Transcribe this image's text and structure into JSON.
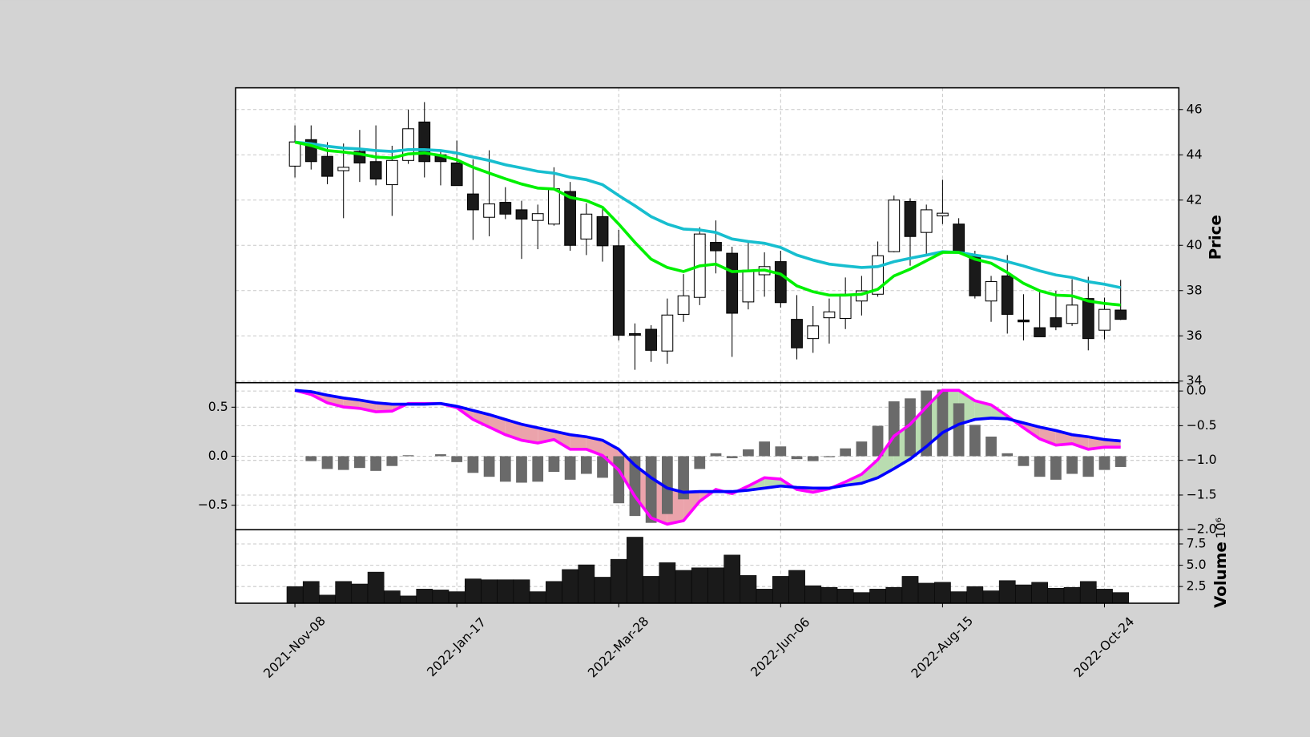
{
  "chart_data": [
    {
      "type": "candlestick",
      "categories": [
        "2021-Nov-08",
        null,
        null,
        null,
        null,
        null,
        null,
        null,
        null,
        null,
        "2022-Jan-17",
        null,
        null,
        null,
        null,
        null,
        null,
        null,
        null,
        null,
        "2022-Mar-28",
        null,
        null,
        null,
        null,
        null,
        null,
        null,
        null,
        null,
        "2022-Jun-06",
        null,
        null,
        null,
        null,
        null,
        null,
        null,
        null,
        null,
        "2022-Aug-15",
        null,
        null,
        null,
        null,
        null,
        null,
        null,
        null,
        null,
        "2022-Oct-24",
        null
      ],
      "open": [
        43.5,
        44.67,
        43.93,
        43.3,
        44.15,
        43.7,
        42.68,
        43.75,
        45.45,
        44.0,
        43.64,
        42.27,
        41.24,
        41.9,
        41.57,
        41.1,
        40.94,
        42.38,
        40.28,
        41.27,
        39.98,
        36.1,
        36.29,
        35.33,
        36.95,
        37.7,
        40.13,
        39.65,
        37.5,
        38.7,
        39.28,
        36.73,
        35.88,
        36.8,
        36.77,
        37.54,
        37.84,
        39.72,
        41.94,
        40.57,
        41.3,
        40.94,
        39.57,
        37.54,
        38.65,
        36.7,
        36.36,
        36.8,
        36.55,
        37.65,
        36.25,
        37.14
      ],
      "high": [
        45.3,
        45.3,
        44.56,
        44.5,
        45.1,
        45.3,
        44.4,
        46.0,
        46.33,
        44.15,
        44.63,
        43.8,
        44.2,
        42.57,
        41.97,
        41.8,
        43.45,
        42.8,
        41.86,
        41.6,
        40.68,
        36.55,
        36.47,
        37.65,
        38.73,
        40.8,
        41.1,
        39.94,
        40.13,
        39.69,
        39.76,
        37.8,
        37.32,
        37.65,
        38.58,
        38.65,
        40.17,
        42.2,
        42.08,
        41.8,
        42.9,
        41.2,
        39.76,
        38.65,
        39.57,
        37.84,
        38.0,
        37.99,
        38.5,
        38.61,
        37.69,
        38.47
      ],
      "low": [
        43.0,
        43.35,
        42.7,
        41.2,
        42.8,
        42.65,
        41.3,
        43.6,
        43.0,
        42.65,
        42.64,
        40.24,
        40.4,
        41.16,
        39.4,
        39.83,
        40.87,
        39.76,
        39.57,
        39.28,
        35.8,
        34.5,
        34.85,
        34.77,
        36.62,
        37.36,
        38.76,
        35.07,
        37.17,
        37.73,
        37.25,
        34.96,
        35.25,
        35.66,
        36.3,
        36.9,
        37.73,
        39.69,
        39.1,
        39.57,
        40.94,
        39.69,
        37.65,
        36.62,
        36.1,
        35.8,
        35.96,
        36.25,
        36.44,
        35.36,
        35.85,
        36.7
      ],
      "close": [
        44.57,
        43.7,
        43.05,
        43.45,
        43.64,
        42.93,
        43.75,
        45.15,
        43.7,
        43.7,
        42.64,
        41.57,
        41.83,
        41.38,
        41.16,
        41.4,
        42.5,
        40.0,
        41.38,
        39.98,
        36.03,
        36.03,
        35.36,
        36.92,
        37.77,
        40.5,
        39.76,
        37.0,
        38.9,
        39.06,
        37.47,
        35.47,
        36.44,
        37.06,
        37.84,
        37.99,
        39.54,
        42.0,
        40.39,
        41.57,
        41.42,
        39.69,
        37.77,
        38.4,
        36.95,
        36.62,
        35.96,
        36.4,
        37.36,
        35.88,
        37.17,
        36.73
      ],
      "up_color": "#ffffff",
      "down_color": "#1a1a1a",
      "series": [
        {
          "color": "#17becf",
          "values": [
            44.56,
            44.49,
            44.38,
            44.3,
            44.26,
            44.19,
            44.15,
            44.23,
            44.23,
            44.19,
            44.08,
            43.9,
            43.75,
            43.56,
            43.42,
            43.27,
            43.19,
            43.01,
            42.9,
            42.68,
            42.2,
            41.75,
            41.27,
            40.94,
            40.72,
            40.68,
            40.57,
            40.28,
            40.17,
            40.09,
            39.91,
            39.57,
            39.35,
            39.17,
            39.09,
            39.02,
            39.06,
            39.28,
            39.43,
            39.57,
            39.72,
            39.69,
            39.57,
            39.46,
            39.28,
            39.09,
            38.87,
            38.69,
            38.58,
            38.39,
            38.28,
            38.13
          ]
        },
        {
          "color": "#00f000",
          "values": [
            44.56,
            44.41,
            44.19,
            44.12,
            44.04,
            43.9,
            43.86,
            44.04,
            44.08,
            43.97,
            43.78,
            43.45,
            43.19,
            42.94,
            42.71,
            42.53,
            42.49,
            42.12,
            41.98,
            41.68,
            40.94,
            40.13,
            39.39,
            39.02,
            38.84,
            39.09,
            39.17,
            38.84,
            38.87,
            38.91,
            38.73,
            38.21,
            37.95,
            37.8,
            37.8,
            37.84,
            38.06,
            38.65,
            38.95,
            39.32,
            39.69,
            39.69,
            39.39,
            39.21,
            38.8,
            38.32,
            37.99,
            37.8,
            37.77,
            37.54,
            37.43,
            37.36
          ]
        }
      ],
      "ylabel": "Price",
      "ylim": [
        33.93,
        46.96
      ],
      "yticks": [
        34,
        36,
        38,
        40,
        42,
        44,
        46
      ],
      "grid": true
    },
    {
      "type": "macd",
      "values": [
        0,
        -0.05,
        -0.13,
        -0.14,
        -0.12,
        -0.15,
        -0.1,
        0.01,
        0,
        0.02,
        -0.06,
        -0.17,
        -0.21,
        -0.26,
        -0.27,
        -0.26,
        -0.16,
        -0.24,
        -0.18,
        -0.22,
        -0.48,
        -0.61,
        -0.68,
        -0.59,
        -0.44,
        -0.13,
        0.03,
        -0.02,
        0.07,
        0.15,
        0.1,
        -0.03,
        -0.05,
        -0.01,
        0.08,
        0.15,
        0.31,
        0.56,
        0.59,
        0.67,
        0.68,
        0.54,
        0.32,
        0.2,
        0.03,
        -0.1,
        -0.21,
        -0.24,
        -0.18,
        -0.21,
        -0.14,
        -0.11
      ],
      "color": "#6a6a6a",
      "fill_colors": [
        "#b9dcb0",
        "#eba3ab"
      ],
      "series": [
        {
          "color": "#ff00ff",
          "axis": "y2",
          "values": [
            0.01,
            -0.05,
            -0.17,
            -0.23,
            -0.25,
            -0.3,
            -0.29,
            -0.18,
            -0.18,
            -0.18,
            -0.24,
            -0.41,
            -0.52,
            -0.63,
            -0.71,
            -0.75,
            -0.7,
            -0.84,
            -0.84,
            -0.93,
            -1.14,
            -1.52,
            -1.83,
            -1.92,
            -1.87,
            -1.59,
            -1.42,
            -1.48,
            -1.37,
            -1.25,
            -1.27,
            -1.42,
            -1.46,
            -1.41,
            -1.31,
            -1.2,
            -0.99,
            -0.65,
            -0.48,
            -0.23,
            0.01,
            0.01,
            -0.14,
            -0.2,
            -0.36,
            -0.53,
            -0.69,
            -0.78,
            -0.76,
            -0.84,
            -0.81,
            -0.81
          ]
        },
        {
          "color": "#0000ff",
          "axis": "y2",
          "values": [
            0.01,
            -0.01,
            -0.06,
            -0.1,
            -0.13,
            -0.17,
            -0.19,
            -0.19,
            -0.19,
            -0.18,
            -0.22,
            -0.28,
            -0.34,
            -0.41,
            -0.48,
            -0.53,
            -0.58,
            -0.63,
            -0.66,
            -0.71,
            -0.84,
            -1.07,
            -1.25,
            -1.4,
            -1.46,
            -1.45,
            -1.45,
            -1.45,
            -1.43,
            -1.4,
            -1.37,
            -1.39,
            -1.4,
            -1.4,
            -1.36,
            -1.33,
            -1.25,
            -1.12,
            -0.98,
            -0.8,
            -0.6,
            -0.48,
            -0.41,
            -0.39,
            -0.4,
            -0.46,
            -0.52,
            -0.57,
            -0.63,
            -0.66,
            -0.7,
            -0.72
          ]
        }
      ],
      "ylim": [
        -0.75,
        0.75
      ],
      "yticks": [
        {
          "value": -0.5,
          "label": "−0.5"
        },
        {
          "value": 0,
          "label": "0.0"
        },
        0.5
      ],
      "y2lim": [
        -2.0,
        0.12
      ],
      "y2ticks": [
        {
          "value": -2.0,
          "label": "−2.0"
        },
        {
          "value": -1.5,
          "label": "−1.5"
        },
        {
          "value": -1.0,
          "label": "−1.0"
        },
        {
          "value": -0.5,
          "label": "−0.5"
        },
        {
          "value": 0,
          "label": "0.0"
        }
      ],
      "grid": true
    },
    {
      "type": "bar",
      "values": [
        2.5,
        3.1,
        1.5,
        3.1,
        2.8,
        4.2,
        2.0,
        1.4,
        2.2,
        2.1,
        1.9,
        3.4,
        3.3,
        3.3,
        3.3,
        1.9,
        3.1,
        4.5,
        5.05,
        3.6,
        5.7,
        8.3,
        3.7,
        5.3,
        4.4,
        4.7,
        4.7,
        6.2,
        3.8,
        2.2,
        3.7,
        4.4,
        2.6,
        2.4,
        2.2,
        1.8,
        2.2,
        2.4,
        3.7,
        2.9,
        3.0,
        1.9,
        2.5,
        2.0,
        3.2,
        2.7,
        3.0,
        2.3,
        2.4,
        3.1,
        2.2,
        1.8
      ],
      "color": "#1a1a1a",
      "ylabel": "Volume",
      "offset_label": "10⁶",
      "ylim": [
        0.54,
        9.17
      ],
      "yticks": [
        2.5,
        {
          "value": 5.0,
          "label": "5.0"
        },
        7.5
      ],
      "grid": true
    }
  ]
}
